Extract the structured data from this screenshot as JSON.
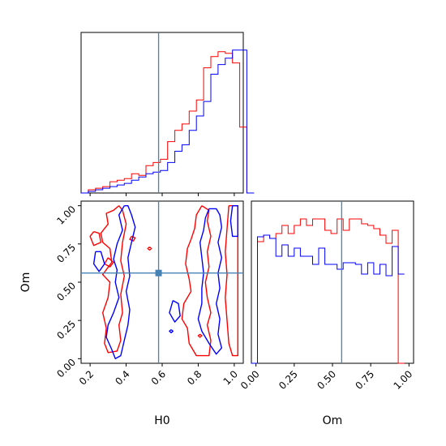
{
  "chart_data": {
    "type": "corner",
    "parameters": [
      "H0",
      "Om"
    ],
    "truths": {
      "H0": 0.58,
      "Om": 0.56
    },
    "colors": {
      "series_red": "#ff0000",
      "series_blue": "#0000ff",
      "truth": "#4682b4"
    },
    "axes": {
      "H0": {
        "label": "H0",
        "range": [
          0.15,
          1.05
        ],
        "ticks": [
          "0.2",
          "0.4",
          "0.6",
          "0.8",
          "1.0"
        ]
      },
      "Om": {
        "label": "Om",
        "range": [
          -0.03,
          1.03
        ],
        "ticks": [
          "0.00",
          "0.25",
          "0.50",
          "0.75",
          "1.00"
        ]
      }
    },
    "histograms": {
      "H0": {
        "bin_start": 0.15,
        "bin_width": 0.04,
        "red": [
          0.0,
          0.02,
          0.03,
          0.04,
          0.07,
          0.08,
          0.09,
          0.12,
          0.11,
          0.17,
          0.19,
          0.21,
          0.32,
          0.39,
          0.43,
          0.51,
          0.58,
          0.78,
          0.85,
          0.88,
          0.87,
          0.81,
          0.41,
          0.0
        ],
        "blue": [
          0.0,
          0.01,
          0.02,
          0.03,
          0.04,
          0.05,
          0.06,
          0.08,
          0.1,
          0.12,
          0.13,
          0.14,
          0.19,
          0.26,
          0.3,
          0.39,
          0.48,
          0.57,
          0.74,
          0.8,
          0.84,
          0.89,
          0.89,
          0.0
        ]
      },
      "Om": {
        "bin_start": -0.03,
        "bin_width": 0.04,
        "red": [
          0.0,
          0.75,
          0.79,
          0.77,
          0.8,
          0.85,
          0.8,
          0.85,
          0.89,
          0.85,
          0.89,
          0.89,
          0.82,
          0.8,
          0.89,
          0.82,
          0.89,
          0.89,
          0.86,
          0.85,
          0.83,
          0.79,
          0.74,
          0.82,
          0.0
        ],
        "blue": [
          0.0,
          0.78,
          0.79,
          0.77,
          0.66,
          0.73,
          0.66,
          0.71,
          0.66,
          0.66,
          0.61,
          0.71,
          0.61,
          0.61,
          0.58,
          0.62,
          0.62,
          0.61,
          0.55,
          0.62,
          0.55,
          0.61,
          0.54,
          0.72,
          0.55
        ]
      }
    },
    "contours": {
      "red": [
        [
          [
            0.36,
            1.0
          ],
          [
            0.33,
            0.97
          ],
          [
            0.29,
            0.95
          ],
          [
            0.3,
            0.88
          ],
          [
            0.26,
            0.82
          ],
          [
            0.27,
            0.76
          ],
          [
            0.31,
            0.72
          ],
          [
            0.32,
            0.63
          ],
          [
            0.27,
            0.55
          ],
          [
            0.31,
            0.5
          ],
          [
            0.3,
            0.4
          ],
          [
            0.27,
            0.3
          ],
          [
            0.29,
            0.2
          ],
          [
            0.28,
            0.1
          ],
          [
            0.3,
            0.04
          ],
          [
            0.35,
            0.05
          ],
          [
            0.37,
            0.12
          ],
          [
            0.36,
            0.22
          ],
          [
            0.38,
            0.3
          ],
          [
            0.37,
            0.42
          ],
          [
            0.39,
            0.54
          ],
          [
            0.37,
            0.64
          ],
          [
            0.38,
            0.76
          ],
          [
            0.4,
            0.88
          ],
          [
            0.38,
            0.97
          ],
          [
            0.36,
            1.0
          ]
        ],
        [
          [
            0.22,
            0.83
          ],
          [
            0.2,
            0.8
          ],
          [
            0.22,
            0.74
          ],
          [
            0.26,
            0.76
          ],
          [
            0.25,
            0.82
          ],
          [
            0.22,
            0.83
          ]
        ],
        [
          [
            0.3,
            0.66
          ],
          [
            0.28,
            0.62
          ],
          [
            0.31,
            0.6
          ],
          [
            0.33,
            0.63
          ],
          [
            0.3,
            0.66
          ]
        ],
        [
          [
            0.43,
            0.8
          ],
          [
            0.42,
            0.78
          ],
          [
            0.44,
            0.77
          ],
          [
            0.45,
            0.79
          ],
          [
            0.43,
            0.8
          ]
        ],
        [
          [
            0.82,
            1.0
          ],
          [
            0.79,
            0.94
          ],
          [
            0.78,
            0.85
          ],
          [
            0.76,
            0.78
          ],
          [
            0.74,
            0.72
          ],
          [
            0.73,
            0.62
          ],
          [
            0.75,
            0.52
          ],
          [
            0.76,
            0.44
          ],
          [
            0.72,
            0.36
          ],
          [
            0.71,
            0.26
          ],
          [
            0.74,
            0.2
          ],
          [
            0.75,
            0.1
          ],
          [
            0.79,
            0.02
          ],
          [
            0.86,
            0.02
          ],
          [
            0.87,
            0.12
          ],
          [
            0.85,
            0.22
          ],
          [
            0.87,
            0.3
          ],
          [
            0.85,
            0.4
          ],
          [
            0.84,
            0.5
          ],
          [
            0.86,
            0.6
          ],
          [
            0.85,
            0.7
          ],
          [
            0.87,
            0.8
          ],
          [
            0.85,
            0.9
          ],
          [
            0.86,
            0.97
          ],
          [
            0.82,
            1.0
          ]
        ],
        [
          [
            0.97,
            1.0
          ],
          [
            0.96,
            0.85
          ],
          [
            0.95,
            0.7
          ],
          [
            0.96,
            0.55
          ],
          [
            0.95,
            0.4
          ],
          [
            0.96,
            0.25
          ],
          [
            0.97,
            0.1
          ],
          [
            0.99,
            0.02
          ],
          [
            1.02,
            0.02
          ],
          [
            1.02,
            1.0
          ],
          [
            0.97,
            1.0
          ]
        ],
        [
          [
            0.81,
            0.16
          ],
          [
            0.8,
            0.15
          ],
          [
            0.81,
            0.14
          ],
          [
            0.82,
            0.15
          ],
          [
            0.81,
            0.16
          ]
        ],
        [
          [
            0.53,
            0.73
          ],
          [
            0.52,
            0.72
          ],
          [
            0.53,
            0.71
          ],
          [
            0.54,
            0.72
          ],
          [
            0.53,
            0.73
          ]
        ]
      ],
      "blue": [
        [
          [
            0.39,
            1.0
          ],
          [
            0.36,
            0.94
          ],
          [
            0.38,
            0.84
          ],
          [
            0.35,
            0.75
          ],
          [
            0.33,
            0.65
          ],
          [
            0.35,
            0.58
          ],
          [
            0.34,
            0.5
          ],
          [
            0.36,
            0.4
          ],
          [
            0.33,
            0.3
          ],
          [
            0.3,
            0.22
          ],
          [
            0.29,
            0.14
          ],
          [
            0.32,
            0.06
          ],
          [
            0.34,
            0.0
          ],
          [
            0.37,
            0.02
          ],
          [
            0.39,
            0.12
          ],
          [
            0.41,
            0.22
          ],
          [
            0.42,
            0.32
          ],
          [
            0.4,
            0.44
          ],
          [
            0.42,
            0.54
          ],
          [
            0.41,
            0.66
          ],
          [
            0.43,
            0.76
          ],
          [
            0.45,
            0.86
          ],
          [
            0.43,
            0.94
          ],
          [
            0.41,
            1.0
          ],
          [
            0.39,
            1.0
          ]
        ],
        [
          [
            0.23,
            0.7
          ],
          [
            0.22,
            0.62
          ],
          [
            0.25,
            0.57
          ],
          [
            0.28,
            0.62
          ],
          [
            0.26,
            0.7
          ],
          [
            0.23,
            0.7
          ]
        ],
        [
          [
            0.86,
            0.98
          ],
          [
            0.84,
            0.92
          ],
          [
            0.83,
            0.84
          ],
          [
            0.81,
            0.76
          ],
          [
            0.82,
            0.66
          ],
          [
            0.83,
            0.56
          ],
          [
            0.82,
            0.46
          ],
          [
            0.82,
            0.36
          ],
          [
            0.8,
            0.26
          ],
          [
            0.82,
            0.18
          ],
          [
            0.86,
            0.1
          ],
          [
            0.9,
            0.03
          ],
          [
            0.93,
            0.07
          ],
          [
            0.91,
            0.16
          ],
          [
            0.92,
            0.26
          ],
          [
            0.9,
            0.36
          ],
          [
            0.92,
            0.46
          ],
          [
            0.91,
            0.56
          ],
          [
            0.93,
            0.66
          ],
          [
            0.91,
            0.76
          ],
          [
            0.93,
            0.86
          ],
          [
            0.92,
            0.94
          ],
          [
            0.9,
            0.98
          ],
          [
            0.86,
            0.98
          ]
        ],
        [
          [
            0.66,
            0.38
          ],
          [
            0.64,
            0.3
          ],
          [
            0.67,
            0.24
          ],
          [
            0.7,
            0.28
          ],
          [
            0.69,
            0.36
          ],
          [
            0.66,
            0.38
          ]
        ],
        [
          [
            0.99,
            1.0
          ],
          [
            0.98,
            0.9
          ],
          [
            0.99,
            0.8
          ],
          [
            1.02,
            0.8
          ],
          [
            1.02,
            1.0
          ],
          [
            0.99,
            1.0
          ]
        ],
        [
          [
            0.65,
            0.19
          ],
          [
            0.64,
            0.18
          ],
          [
            0.65,
            0.17
          ],
          [
            0.66,
            0.18
          ],
          [
            0.65,
            0.19
          ]
        ]
      ]
    }
  }
}
